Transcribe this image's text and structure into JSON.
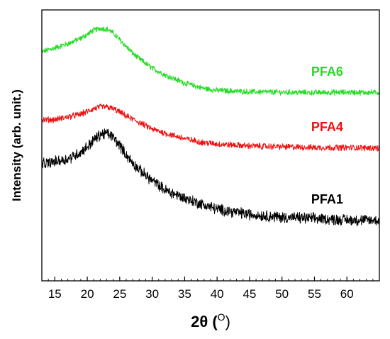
{
  "chart_data": {
    "type": "line",
    "x_axis": {
      "label_main": "2θ (",
      "label_sup": "O",
      "label_end": ")",
      "range": [
        13,
        65
      ],
      "ticks": [
        15,
        20,
        25,
        30,
        35,
        40,
        45,
        50,
        55,
        60
      ]
    },
    "y_axis": {
      "label": "Intensity (arb. unit.)",
      "tick_labels_shown": false,
      "range": [
        0,
        100
      ]
    },
    "grid": false,
    "legend": "inline labels at right of each curve",
    "series": [
      {
        "name": "PFA6",
        "color": "#22dd22",
        "points": [
          [
            13,
            84.5
          ],
          [
            15,
            86
          ],
          [
            17,
            87.5
          ],
          [
            19,
            89.5
          ],
          [
            20,
            91
          ],
          [
            21,
            92.5
          ],
          [
            22,
            93.2
          ],
          [
            23,
            93
          ],
          [
            24,
            91.5
          ],
          [
            25,
            89
          ],
          [
            26,
            86.5
          ],
          [
            27,
            84
          ],
          [
            28,
            82
          ],
          [
            30,
            78.5
          ],
          [
            32,
            76
          ],
          [
            35,
            73
          ],
          [
            38,
            71
          ],
          [
            40,
            70.3
          ],
          [
            45,
            69.8
          ],
          [
            50,
            69.6
          ],
          [
            55,
            69.5
          ],
          [
            60,
            69.6
          ],
          [
            65,
            69.5
          ]
        ],
        "noise": 0.9
      },
      {
        "name": "PFA4",
        "color": "#ee1111",
        "points": [
          [
            13,
            59.5
          ],
          [
            15,
            59.5
          ],
          [
            17,
            60.5
          ],
          [
            19,
            61.5
          ],
          [
            20,
            62.5
          ],
          [
            21,
            63.5
          ],
          [
            22,
            64.2
          ],
          [
            23,
            64.2
          ],
          [
            24,
            63.5
          ],
          [
            25,
            62.3
          ],
          [
            26,
            60.8
          ],
          [
            28,
            58.5
          ],
          [
            30,
            56
          ],
          [
            32,
            54.5
          ],
          [
            35,
            52.5
          ],
          [
            38,
            51
          ],
          [
            40,
            50.5
          ],
          [
            45,
            49.8
          ],
          [
            50,
            49.5
          ],
          [
            55,
            49.2
          ],
          [
            60,
            49.2
          ],
          [
            65,
            49
          ]
        ],
        "noise": 1.0
      },
      {
        "name": "PFA1",
        "color": "#000000",
        "points": [
          [
            13,
            43
          ],
          [
            15,
            44
          ],
          [
            17,
            45
          ],
          [
            19,
            47.5
          ],
          [
            20,
            49.5
          ],
          [
            21,
            52
          ],
          [
            22,
            54
          ],
          [
            23,
            54.5
          ],
          [
            24,
            53
          ],
          [
            25,
            50
          ],
          [
            26,
            46.5
          ],
          [
            27,
            43.5
          ],
          [
            28,
            41
          ],
          [
            30,
            37
          ],
          [
            32,
            33.5
          ],
          [
            35,
            30.5
          ],
          [
            38,
            28
          ],
          [
            40,
            26.5
          ],
          [
            45,
            24.5
          ],
          [
            50,
            23.5
          ],
          [
            55,
            23
          ],
          [
            60,
            22.5
          ],
          [
            65,
            22.3
          ]
        ],
        "noise": 1.8
      }
    ]
  }
}
